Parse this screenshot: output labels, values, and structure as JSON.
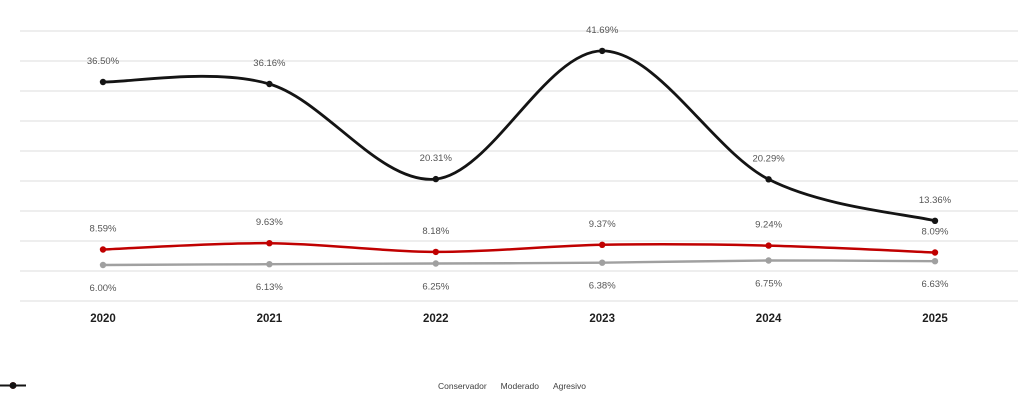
{
  "chart_data": {
    "type": "line",
    "title": "",
    "xlabel": "",
    "ylabel": "",
    "categories": [
      "2020",
      "2021",
      "2022",
      "2023",
      "2024",
      "2025"
    ],
    "series": [
      {
        "name": "Conservador",
        "color": "#a0a0a0",
        "values": [
          6.0,
          6.13,
          6.25,
          6.38,
          6.75,
          6.63
        ],
        "labels": [
          "6.00%",
          "6.13%",
          "6.25%",
          "6.38%",
          "6.75%",
          "6.63%"
        ],
        "label_position": "below"
      },
      {
        "name": "Moderado",
        "color": "#c00000",
        "values": [
          8.59,
          9.63,
          8.18,
          9.37,
          9.24,
          8.09
        ],
        "labels": [
          "8.59%",
          "9.63%",
          "8.18%",
          "9.37%",
          "9.24%",
          "8.09%"
        ],
        "label_position": "above"
      },
      {
        "name": "Agresivo",
        "color": "#141414",
        "values": [
          36.5,
          36.16,
          20.31,
          41.69,
          20.29,
          13.36
        ],
        "labels": [
          "36.50%",
          "36.16%",
          "20.31%",
          "41.69%",
          "20.29%",
          "13.36%"
        ],
        "label_position": "above"
      }
    ],
    "ylim": [
      0,
      45
    ],
    "grid_step": 5,
    "grid": true,
    "gridline_color": "#dedede",
    "smooth": true,
    "legend_position": "bottom",
    "y_axis_labels_visible": false
  }
}
